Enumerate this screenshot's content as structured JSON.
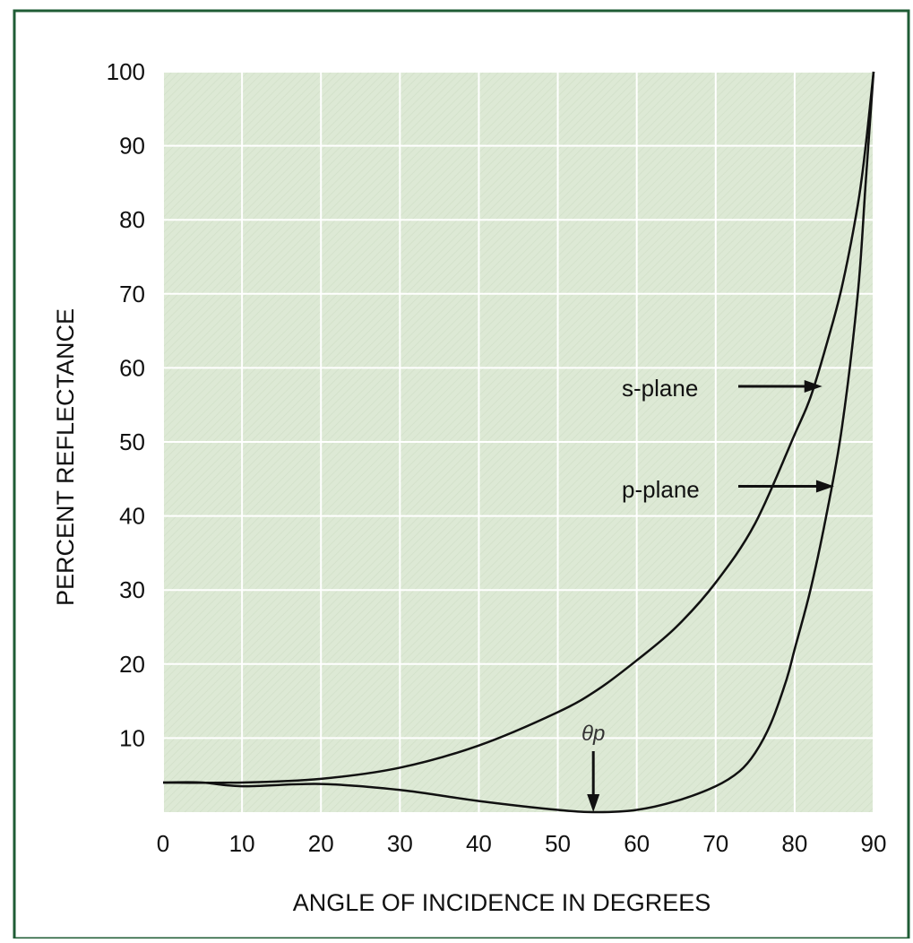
{
  "chart_data": {
    "type": "line",
    "xlabel": "ANGLE OF INCIDENCE IN DEGREES",
    "ylabel": "PERCENT REFLECTANCE",
    "xlim": [
      0,
      90
    ],
    "ylim": [
      0,
      100
    ],
    "xticks": [
      0,
      10,
      20,
      30,
      40,
      50,
      60,
      70,
      80,
      90
    ],
    "yticks": [
      10,
      20,
      30,
      40,
      50,
      60,
      70,
      80,
      90,
      100
    ],
    "grid": true,
    "series": [
      {
        "name": "s-plane",
        "x": [
          0,
          10,
          20,
          30,
          40,
          50,
          55,
          60,
          65,
          70,
          75,
          80,
          82,
          84,
          86,
          88,
          89,
          90
        ],
        "y": [
          4,
          4,
          4.5,
          6,
          9,
          13.5,
          16.5,
          20.5,
          25,
          31,
          39,
          51,
          56,
          63,
          71,
          82,
          90,
          100
        ]
      },
      {
        "name": "p-plane",
        "x": [
          0,
          5,
          10,
          20,
          30,
          40,
          50,
          55,
          60,
          65,
          70,
          73,
          75,
          77,
          79,
          80,
          82,
          84,
          86,
          88,
          89,
          90
        ],
        "y": [
          4,
          4,
          3.5,
          3.8,
          3,
          1.5,
          0.3,
          0,
          0.3,
          1.5,
          3.5,
          5.5,
          8,
          12,
          18,
          22,
          30,
          40,
          52,
          70,
          85,
          100
        ]
      }
    ],
    "annotations": [
      {
        "text": "s-plane",
        "target_series": "s-plane",
        "x": 83.5,
        "y": 57.5
      },
      {
        "text": "p-plane",
        "target_series": "p-plane",
        "x": 85,
        "y": 44
      },
      {
        "text": "θp",
        "x": 54.5,
        "y": 0
      }
    ]
  },
  "colors": {
    "plot_background": "#dde9d5",
    "frame": "#1f5c35",
    "curve": "#111111",
    "grid": "#ffffff"
  }
}
